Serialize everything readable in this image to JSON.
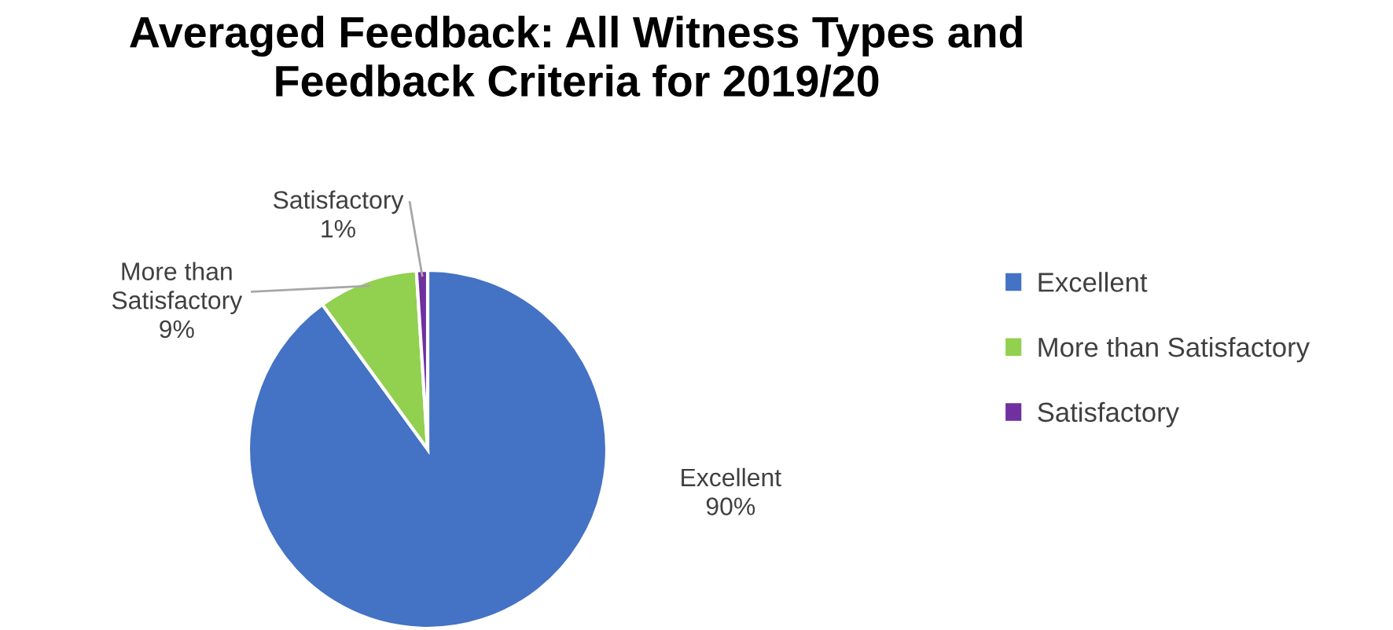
{
  "chart_data": {
    "type": "pie",
    "title": "Averaged Feedback: All Witness Types and Feedback Criteria for 2019/20",
    "categories": [
      "Excellent",
      "More than Satisfactory",
      "Satisfactory"
    ],
    "values": [
      90,
      9,
      1
    ],
    "value_labels": [
      "90%",
      "9%",
      "1%"
    ],
    "colors": [
      "#4472c4",
      "#92d050",
      "#7030a0"
    ],
    "legend": "right"
  }
}
